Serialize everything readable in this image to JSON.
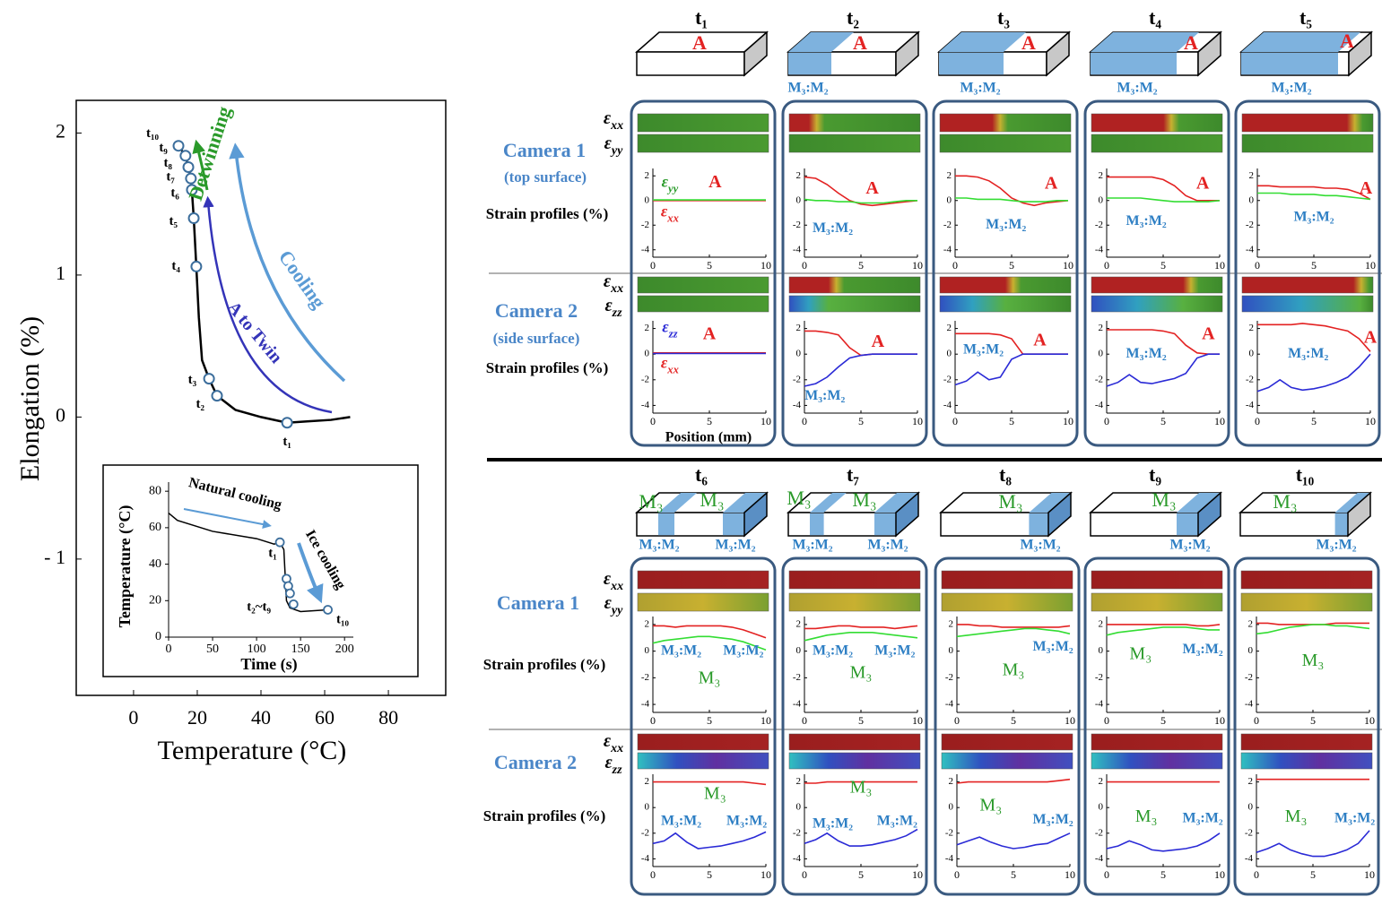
{
  "main_plot": {
    "ylabel": "Elongation (%)",
    "xlabel": "Temperature (°C)",
    "xlim": [
      -18,
      98
    ],
    "ylim": [
      -1.96,
      2.23
    ],
    "xticks": [
      0,
      20,
      40,
      60,
      80
    ],
    "yticks": [
      {
        "value": -1,
        "label": "- 1"
      },
      0,
      1,
      2
    ],
    "curve": {
      "x": [
        14.1,
        16.3,
        17.2,
        18,
        18.3,
        18.9,
        19.7,
        20.5,
        21.5,
        23.7,
        26.2,
        32,
        40,
        48.2,
        55,
        62,
        68
      ],
      "y": [
        1.91,
        1.84,
        1.76,
        1.68,
        1.6,
        1.4,
        1.06,
        0.7,
        0.4,
        0.27,
        0.15,
        0.05,
        0.0,
        -0.04,
        -0.03,
        -0.02,
        0.0
      ]
    },
    "points": {
      "labels": [
        "t₁",
        "t₂",
        "t₃",
        "t₄",
        "t₅",
        "t₆",
        "t₇",
        "t₈",
        "t₉",
        "t₁₀"
      ],
      "x": [
        48.2,
        26.2,
        23.7,
        19.7,
        18.9,
        18.3,
        18,
        17.2,
        16.3,
        14.1
      ],
      "y": [
        -0.04,
        0.15,
        0.27,
        1.06,
        1.4,
        1.6,
        1.68,
        1.76,
        1.84,
        1.91
      ]
    },
    "annotations": [
      {
        "text": "Detwinning",
        "color": "#2a9a2a"
      },
      {
        "text": "Cooling",
        "color": "#5b9bd5"
      },
      {
        "text": "A to Twin",
        "color": "#3434b8"
      }
    ]
  },
  "inset": {
    "ylabel": "Temperature (°C)",
    "xlabel": "Time (s)",
    "xlim": [
      0,
      210
    ],
    "ylim": [
      0,
      85
    ],
    "xticks": [
      0,
      50,
      100,
      150,
      200
    ],
    "yticks": [
      0,
      20,
      40,
      60,
      80
    ],
    "curve": {
      "x": [
        0,
        10,
        50,
        100,
        120,
        126.5,
        131,
        134,
        138,
        150,
        181
      ],
      "y": [
        68,
        64,
        58,
        54,
        51,
        52,
        48,
        20,
        16,
        14,
        15
      ]
    },
    "points": {
      "x": [
        126.5,
        134,
        136,
        138,
        142,
        181
      ],
      "y": [
        52,
        32,
        28,
        24,
        18,
        15
      ]
    },
    "point_labels": [
      "t₁",
      "t₂~t₉",
      "t₁₀"
    ],
    "annotations": [
      "Natural cooling",
      "Ice cooling"
    ]
  },
  "row_labels": {
    "top": {
      "camera1": "Camera 1",
      "camera1_note": "(top surface)",
      "profiles1": "Strain profiles (%)",
      "camera2": "Camera 2",
      "camera2_note": "(side surface)",
      "profiles2": "Strain profiles (%)",
      "position": "Position (mm)",
      "strips1": [
        "εxx",
        "εyy"
      ],
      "strips2": [
        "εxx",
        "εzz"
      ]
    },
    "bottom": {
      "camera1": "Camera 1",
      "profiles1": "Strain profiles (%)",
      "camera2": "Camera 2",
      "profiles2": "Strain profiles (%)",
      "strips1": [
        "εxx",
        "εyy"
      ],
      "strips2": [
        "εxx",
        "εzz"
      ]
    }
  },
  "strain_axes": {
    "x": [
      0,
      1,
      2,
      3,
      4,
      5,
      6,
      7,
      8,
      9,
      10
    ],
    "xlim": [
      0,
      10
    ],
    "xticks": [
      0,
      5,
      10
    ],
    "ylim": [
      -4.6,
      2.6
    ],
    "yticks": [
      2,
      0,
      -2,
      -4
    ]
  },
  "colors": {
    "exx": "#e32222",
    "eyy": "#33dd33",
    "ezz": "#2a2ad6"
  },
  "panels": [
    {
      "time": "t₁",
      "block_labels": [
        {
          "text": "A",
          "color": "#e32222"
        }
      ],
      "phase_labels": [],
      "profile1": {
        "exx": [
          0,
          0,
          0,
          0,
          0,
          0,
          0,
          0,
          0,
          0,
          0
        ],
        "eyy": [
          0.05,
          0.05,
          0.05,
          0.05,
          0.05,
          0.05,
          0.05,
          0.05,
          0.05,
          0.05,
          0.05
        ],
        "labels": [
          {
            "text": "εyy",
            "color": "#2a9a2a"
          },
          {
            "text": "A",
            "color": "#e32222"
          },
          {
            "text": "εxx",
            "color": "#e32222"
          }
        ]
      },
      "profile2": {
        "exx": [
          0.1,
          0.1,
          0.1,
          0.1,
          0.1,
          0.1,
          0.1,
          0.1,
          0.1,
          0.1,
          0.1
        ],
        "ezz": [
          0.05,
          0.05,
          0.05,
          0.05,
          0.05,
          0.05,
          0.05,
          0.05,
          0.05,
          0.05,
          0.05
        ],
        "labels": [
          {
            "text": "εzz",
            "color": "#2a2ad6"
          },
          {
            "text": "A",
            "color": "#e32222"
          },
          {
            "text": "εxx",
            "color": "#e32222"
          }
        ]
      }
    },
    {
      "time": "t₂",
      "block_labels": [
        {
          "text": "A",
          "color": "#e32222"
        }
      ],
      "phase_labels": [
        "M₃:M₂"
      ],
      "profile1": {
        "exx": [
          1.9,
          1.8,
          1.3,
          0.6,
          0,
          -0.3,
          -0.4,
          -0.3,
          -0.2,
          -0.1,
          0
        ],
        "eyy": [
          0.1,
          0,
          0,
          -0.1,
          -0.1,
          -0.2,
          -0.2,
          -0.2,
          -0.1,
          0,
          0
        ],
        "labels": [
          {
            "text": "A",
            "color": "#e32222"
          },
          {
            "text": "M₃:M₂",
            "color": "#2e7fc4"
          }
        ]
      },
      "profile2": {
        "exx": [
          1.8,
          1.8,
          1.7,
          1.5,
          0.5,
          -0.1,
          0,
          0,
          0,
          0,
          0
        ],
        "ezz": [
          -2.5,
          -2.3,
          -1.8,
          -1,
          -0.3,
          -0.1,
          0,
          0,
          0,
          0,
          0
        ],
        "labels": [
          {
            "text": "A",
            "color": "#e32222"
          },
          {
            "text": "M₃:M₂",
            "color": "#2e7fc4"
          }
        ]
      }
    },
    {
      "time": "t₃",
      "block_labels": [
        {
          "text": "A",
          "color": "#e32222"
        }
      ],
      "phase_labels": [
        "M₃:M₂"
      ],
      "profile1": {
        "exx": [
          2,
          2,
          1.9,
          1.6,
          1,
          0.2,
          -0.2,
          -0.4,
          -0.2,
          -0.1,
          0
        ],
        "eyy": [
          0.2,
          0.2,
          0.1,
          0.1,
          0.1,
          0,
          -0.1,
          -0.1,
          -0.1,
          0,
          0
        ],
        "labels": [
          {
            "text": "A",
            "color": "#e32222"
          },
          {
            "text": "M₃:M₂",
            "color": "#2e7fc4"
          }
        ]
      },
      "profile2": {
        "exx": [
          1.6,
          1.6,
          1.6,
          1.6,
          1.5,
          1.2,
          0,
          0,
          0,
          0,
          0
        ],
        "ezz": [
          -2.4,
          -2.1,
          -1.4,
          -2,
          -1.8,
          -0.4,
          0,
          0,
          0,
          0,
          0
        ],
        "labels": [
          {
            "text": "M₃:M₂",
            "color": "#2e7fc4"
          },
          {
            "text": "A",
            "color": "#e32222"
          }
        ]
      }
    },
    {
      "time": "t₄",
      "block_labels": [
        {
          "text": "A",
          "color": "#e32222"
        }
      ],
      "phase_labels": [
        "M₃:M₂"
      ],
      "profile1": {
        "exx": [
          1.9,
          1.9,
          1.9,
          1.9,
          1.9,
          1.7,
          1.2,
          0.4,
          0,
          0,
          0
        ],
        "eyy": [
          0.2,
          0.2,
          0.2,
          0.2,
          0.1,
          0,
          -0.1,
          -0.1,
          -0.1,
          -0.1,
          0
        ],
        "labels": [
          {
            "text": "A",
            "color": "#e32222"
          },
          {
            "text": "M₃:M₂",
            "color": "#2e7fc4"
          }
        ]
      },
      "profile2": {
        "exx": [
          1.9,
          1.9,
          1.9,
          1.9,
          1.9,
          1.8,
          1.6,
          0.7,
          0.1,
          0,
          0
        ],
        "ezz": [
          -2.5,
          -2.2,
          -1.6,
          -2.2,
          -2.3,
          -2.1,
          -1.9,
          -1.5,
          -0.3,
          0,
          0
        ],
        "labels": [
          {
            "text": "M₃:M₂",
            "color": "#2e7fc4"
          },
          {
            "text": "A",
            "color": "#e32222"
          }
        ]
      }
    },
    {
      "time": "t₅",
      "block_labels": [
        {
          "text": "A",
          "color": "#e32222"
        }
      ],
      "phase_labels": [
        "M₃:M₂"
      ],
      "profile1": {
        "exx": [
          1.2,
          1.2,
          1.1,
          1.1,
          1.1,
          1.1,
          1.0,
          1.0,
          0.9,
          0.6,
          0.1
        ],
        "eyy": [
          0.6,
          0.6,
          0.6,
          0.5,
          0.5,
          0.5,
          0.4,
          0.4,
          0.3,
          0.2,
          0.1
        ],
        "labels": [
          {
            "text": "A",
            "color": "#e32222"
          },
          {
            "text": "M₃:M₂",
            "color": "#2e7fc4"
          }
        ]
      },
      "profile2": {
        "exx": [
          2.3,
          2.3,
          2.3,
          2.3,
          2.4,
          2.3,
          2.2,
          2.0,
          1.8,
          1.2,
          0.2
        ],
        "ezz": [
          -2.9,
          -2.6,
          -2.0,
          -2.6,
          -2.8,
          -2.7,
          -2.5,
          -2.2,
          -1.8,
          -1.0,
          0
        ],
        "labels": [
          {
            "text": "M₃:M₂",
            "color": "#2e7fc4"
          },
          {
            "text": "A",
            "color": "#e32222"
          }
        ]
      }
    },
    {
      "time": "t₆",
      "block_labels": [
        {
          "text": "M₃",
          "color": "#2a9a2a"
        },
        {
          "text": "M₃",
          "color": "#2a9a2a"
        }
      ],
      "phase_labels": [
        "M₃:M₂",
        "M₃:M₂"
      ],
      "profile1": {
        "exx": [
          1.9,
          1.9,
          1.8,
          1.9,
          1.9,
          1.9,
          1.9,
          1.8,
          1.6,
          1.3,
          1.0
        ],
        "eyy": [
          0.6,
          0.8,
          0.9,
          1.0,
          1.1,
          1.1,
          1.0,
          0.9,
          0.7,
          0.4,
          0.1
        ],
        "labels": [
          {
            "text": "M₃:M₂",
            "color": "#2e7fc4"
          },
          {
            "text": "M₃:M₂",
            "color": "#2e7fc4"
          },
          {
            "text": "M₃",
            "color": "#2a9a2a"
          }
        ]
      },
      "profile2": {
        "exx": [
          2,
          2,
          2,
          2,
          2,
          2,
          2,
          2,
          2,
          1.9,
          1.8
        ],
        "ezz": [
          -2.8,
          -2.6,
          -2.0,
          -2.7,
          -3.2,
          -3.1,
          -3.0,
          -2.8,
          -2.6,
          -2.3,
          -1.9
        ],
        "labels": [
          {
            "text": "M₃",
            "color": "#2a9a2a"
          },
          {
            "text": "M₃:M₂",
            "color": "#2e7fc4"
          },
          {
            "text": "M₃:M₂",
            "color": "#2e7fc4"
          }
        ]
      }
    },
    {
      "time": "t₇",
      "block_labels": [
        {
          "text": "M₃",
          "color": "#2a9a2a"
        },
        {
          "text": "M₃",
          "color": "#2a9a2a"
        }
      ],
      "phase_labels": [
        "M₃:M₂",
        "M₃:M₂"
      ],
      "profile1": {
        "exx": [
          1.7,
          1.7,
          1.8,
          1.9,
          1.9,
          1.8,
          1.8,
          1.8,
          1.7,
          1.8,
          1.9
        ],
        "eyy": [
          0.8,
          1.0,
          1.2,
          1.3,
          1.4,
          1.4,
          1.4,
          1.3,
          1.2,
          1.1,
          1.0
        ],
        "labels": [
          {
            "text": "M₃:M₂",
            "color": "#2e7fc4"
          },
          {
            "text": "M₃:M₂",
            "color": "#2e7fc4"
          },
          {
            "text": "M₃",
            "color": "#2a9a2a"
          }
        ]
      },
      "profile2": {
        "exx": [
          1.9,
          1.9,
          2,
          2,
          2,
          2,
          2,
          2,
          2,
          2,
          2
        ],
        "ezz": [
          -2.8,
          -2.5,
          -2.0,
          -2.6,
          -3.0,
          -3.0,
          -2.9,
          -2.7,
          -2.5,
          -2.2,
          -1.7
        ],
        "labels": [
          {
            "text": "M₃",
            "color": "#2a9a2a"
          },
          {
            "text": "M₃:M₂",
            "color": "#2e7fc4"
          },
          {
            "text": "M₃:M₂",
            "color": "#2e7fc4"
          }
        ]
      }
    },
    {
      "time": "t₈",
      "block_labels": [
        {
          "text": "M₃",
          "color": "#2a9a2a"
        }
      ],
      "phase_labels": [
        "M₃:M₂"
      ],
      "profile1": {
        "exx": [
          2,
          2,
          1.9,
          1.9,
          1.8,
          1.8,
          1.8,
          1.8,
          1.8,
          1.8,
          1.9
        ],
        "eyy": [
          1.1,
          1.2,
          1.3,
          1.4,
          1.5,
          1.6,
          1.7,
          1.7,
          1.6,
          1.5,
          1.3
        ],
        "labels": [
          {
            "text": "M₃:M₂",
            "color": "#2e7fc4"
          },
          {
            "text": "M₃",
            "color": "#2a9a2a"
          }
        ]
      },
      "profile2": {
        "exx": [
          1.9,
          2,
          2,
          2,
          2,
          2,
          2,
          2,
          2,
          2.1,
          2.2
        ],
        "ezz": [
          -2.9,
          -2.6,
          -2.3,
          -2.7,
          -3.0,
          -3.2,
          -3.1,
          -2.9,
          -2.8,
          -2.4,
          -2.0
        ],
        "labels": [
          {
            "text": "M₃",
            "color": "#2a9a2a"
          },
          {
            "text": "M₃:M₂",
            "color": "#2e7fc4"
          }
        ]
      }
    },
    {
      "time": "t₉",
      "block_labels": [
        {
          "text": "M₃",
          "color": "#2a9a2a"
        }
      ],
      "phase_labels": [
        "M₃:M₂"
      ],
      "profile1": {
        "exx": [
          2,
          2,
          2,
          2,
          2,
          2,
          2,
          2,
          1.9,
          1.9,
          2
        ],
        "eyy": [
          1.2,
          1.4,
          1.5,
          1.6,
          1.7,
          1.8,
          1.8,
          1.8,
          1.7,
          1.6,
          1.6
        ],
        "labels": [
          {
            "text": "M₃",
            "color": "#2a9a2a"
          },
          {
            "text": "M₃:M₂",
            "color": "#2e7fc4"
          }
        ]
      },
      "profile2": {
        "exx": [
          2,
          2,
          2,
          2,
          2,
          2,
          2,
          2,
          2,
          2,
          2
        ],
        "ezz": [
          -3.2,
          -3.0,
          -2.6,
          -2.9,
          -3.3,
          -3.4,
          -3.3,
          -3.2,
          -3.0,
          -2.6,
          -2.0
        ],
        "labels": [
          {
            "text": "M₃",
            "color": "#2a9a2a"
          },
          {
            "text": "M₃:M₂",
            "color": "#2e7fc4"
          }
        ]
      }
    },
    {
      "time": "t₁₀",
      "block_labels": [
        {
          "text": "M₃",
          "color": "#2a9a2a"
        }
      ],
      "phase_labels": [
        "M₃:M₂"
      ],
      "profile1": {
        "exx": [
          2.1,
          2.1,
          2,
          2,
          2,
          2,
          2,
          2.1,
          2.1,
          2.1,
          2.1
        ],
        "eyy": [
          1.3,
          1.4,
          1.6,
          1.8,
          1.9,
          2.0,
          2.0,
          1.9,
          1.9,
          1.8,
          1.7
        ],
        "labels": [
          {
            "text": "M₃",
            "color": "#2a9a2a"
          }
        ]
      },
      "profile2": {
        "exx": [
          2.2,
          2.2,
          2.2,
          2.2,
          2.2,
          2.2,
          2.2,
          2.2,
          2.2,
          2.2,
          2.2
        ],
        "ezz": [
          -3.5,
          -3.2,
          -2.8,
          -3.3,
          -3.6,
          -3.8,
          -3.8,
          -3.6,
          -3.3,
          -2.8,
          -1.8
        ],
        "labels": [
          {
            "text": "M₃",
            "color": "#2a9a2a"
          },
          {
            "text": "M₃:M₂",
            "color": "#2e7fc4"
          }
        ]
      }
    }
  ]
}
